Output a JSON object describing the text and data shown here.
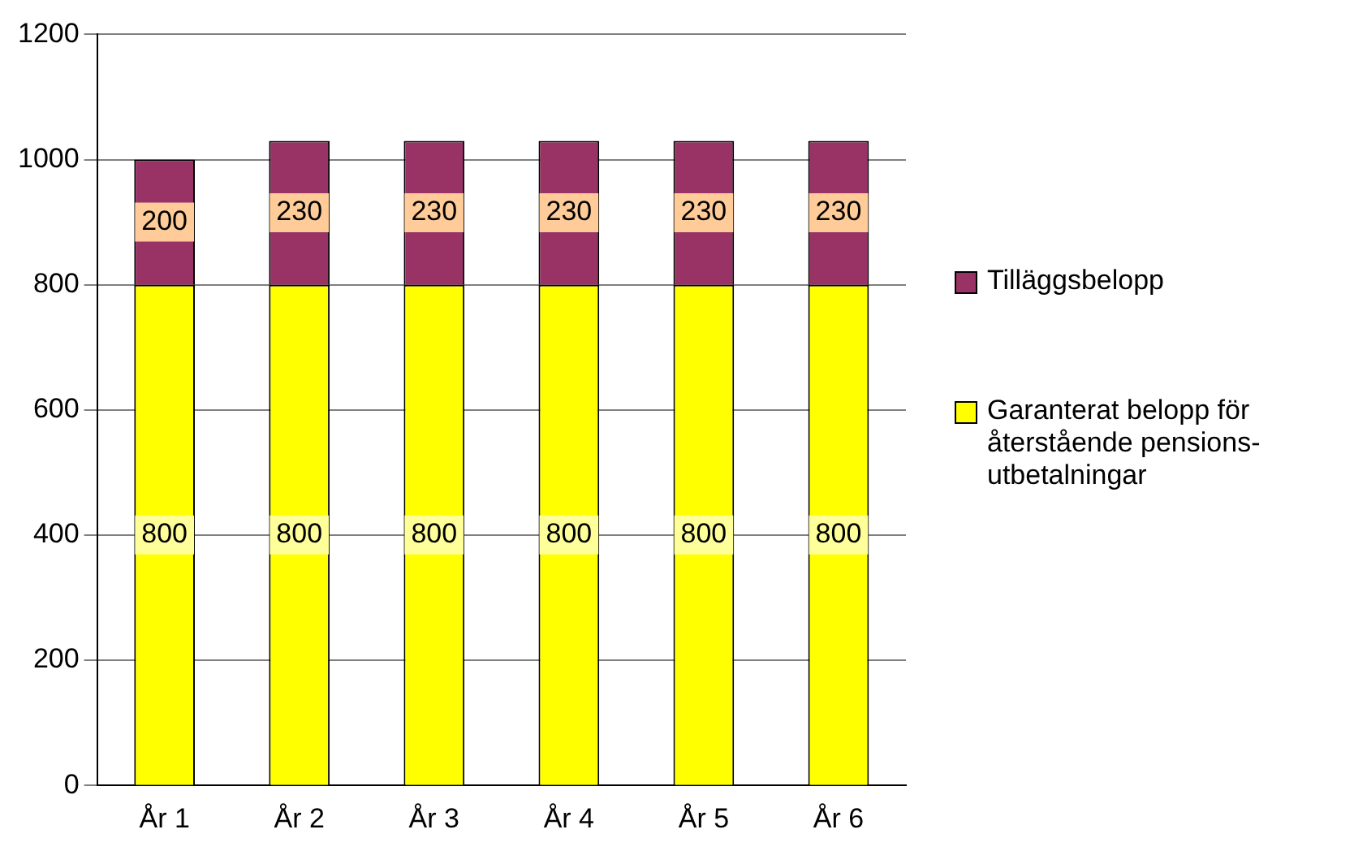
{
  "chart_data": {
    "type": "bar",
    "stacked": true,
    "categories": [
      "År 1",
      "År 2",
      "År 3",
      "År 4",
      "År 5",
      "År 6"
    ],
    "series": [
      {
        "name": "Garanterat belopp för återstående pensions-utbetalningar",
        "color": "#ffff00",
        "values": [
          800,
          800,
          800,
          800,
          800,
          800
        ]
      },
      {
        "name": "Tilläggsbelopp",
        "color": "#993366",
        "values": [
          200,
          230,
          230,
          230,
          230,
          230
        ]
      }
    ],
    "ylim": [
      0,
      1200
    ],
    "yticks": [
      0,
      200,
      400,
      600,
      800,
      1000,
      1200
    ],
    "grid": "y",
    "legend": "right",
    "data_labels": true
  }
}
